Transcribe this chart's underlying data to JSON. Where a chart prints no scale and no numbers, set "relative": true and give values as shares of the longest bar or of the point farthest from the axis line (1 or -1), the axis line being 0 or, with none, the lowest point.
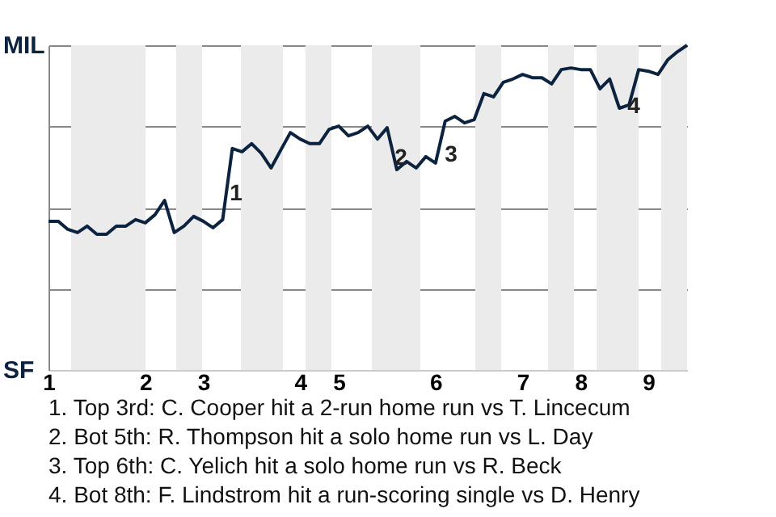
{
  "chart_data": {
    "type": "line",
    "relative": true,
    "categories": [
      "1",
      null,
      null,
      null,
      null,
      null,
      null,
      null,
      null,
      null,
      "2",
      null,
      null,
      null,
      null,
      null,
      "3",
      null,
      null,
      null,
      null,
      null,
      null,
      null,
      null,
      null,
      "4",
      null,
      null,
      null,
      "5",
      null,
      null,
      null,
      null,
      null,
      null,
      null,
      null,
      null,
      "6",
      null,
      null,
      null,
      null,
      null,
      null,
      null,
      null,
      "7",
      null,
      null,
      null,
      null,
      null,
      "8",
      null,
      null,
      null,
      null,
      null,
      null,
      "9",
      null,
      null,
      null,
      null
    ],
    "series": [
      {
        "color": "#0c2340",
        "values": [
          0.458,
          0.458,
          0.433,
          0.423,
          0.443,
          0.418,
          0.418,
          0.443,
          0.443,
          0.463,
          0.453,
          0.478,
          0.522,
          0.423,
          0.443,
          0.473,
          0.458,
          0.438,
          0.463,
          0.682,
          0.672,
          0.697,
          0.667,
          0.622,
          0.677,
          0.731,
          0.711,
          0.697,
          0.697,
          0.741,
          0.751,
          0.721,
          0.731,
          0.751,
          0.711,
          0.746,
          0.617,
          0.642,
          0.622,
          0.657,
          0.637,
          0.766,
          0.781,
          0.761,
          0.771,
          0.851,
          0.841,
          0.886,
          0.896,
          0.91,
          0.9,
          0.9,
          0.881,
          0.925,
          0.93,
          0.925,
          0.925,
          0.866,
          0.896,
          0.806,
          0.816,
          0.925,
          0.92,
          0.91,
          0.955,
          0.98,
          1
        ]
      }
    ],
    "grid": "y",
    "annotations": [
      "MIL",
      "SF",
      "1",
      "2",
      "3",
      "4",
      "1. Top 3rd: C. Cooper hit a 2-run home run vs T. Lincecum",
      "2. Bot 5th: R. Thompson hit a solo home run vs L. Day",
      "3. Top 6th: C. Yelich hit a solo home run vs R. Beck",
      "4. Bot 8th: F. Lindstrom hit a run-scoring single vs D. Henry"
    ]
  }
}
